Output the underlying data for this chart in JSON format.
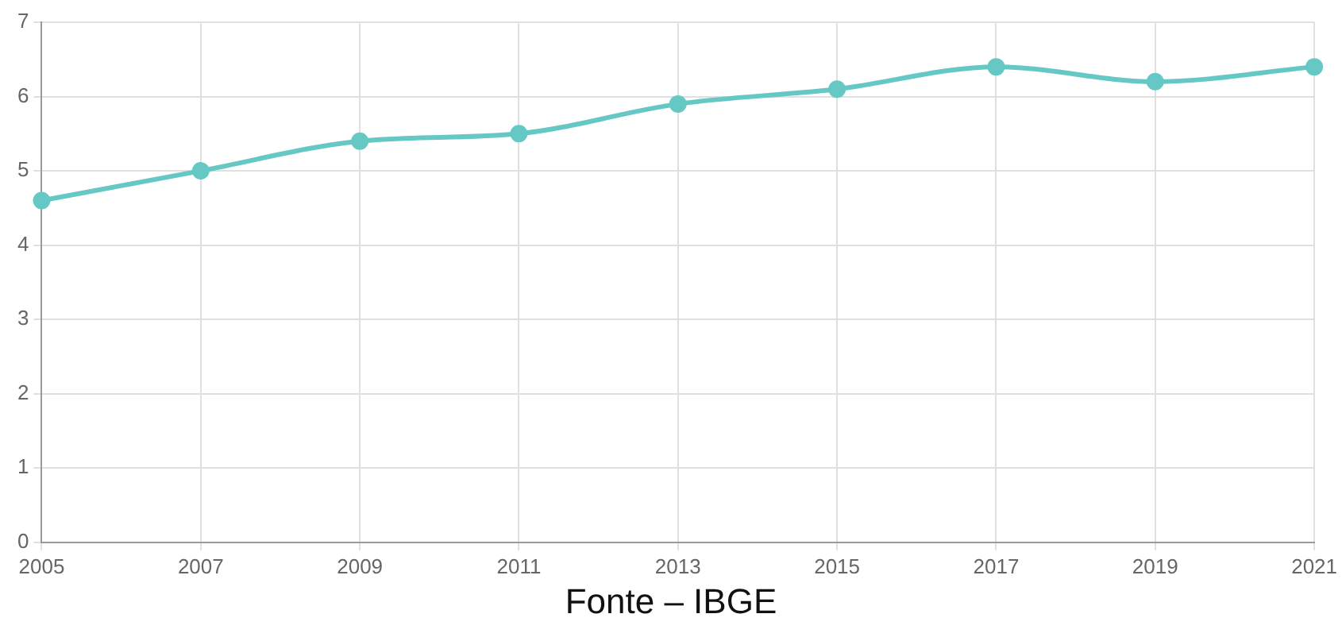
{
  "chart_data": {
    "type": "line",
    "categories": [
      "2005",
      "2007",
      "2009",
      "2011",
      "2013",
      "2015",
      "2017",
      "2019",
      "2021"
    ],
    "series": [
      {
        "color": "#66c8c4",
        "values": [
          4.6,
          5.0,
          5.4,
          5.5,
          5.9,
          6.1,
          6.4,
          6.2,
          6.4
        ]
      }
    ],
    "ylim": [
      0,
      7
    ],
    "yticks": [
      0,
      1,
      2,
      3,
      4,
      5,
      6,
      7
    ],
    "grid": true,
    "legend": false,
    "marker": "circle",
    "line_style": "solid",
    "annotations": [
      "Fonte – IBGE"
    ]
  }
}
